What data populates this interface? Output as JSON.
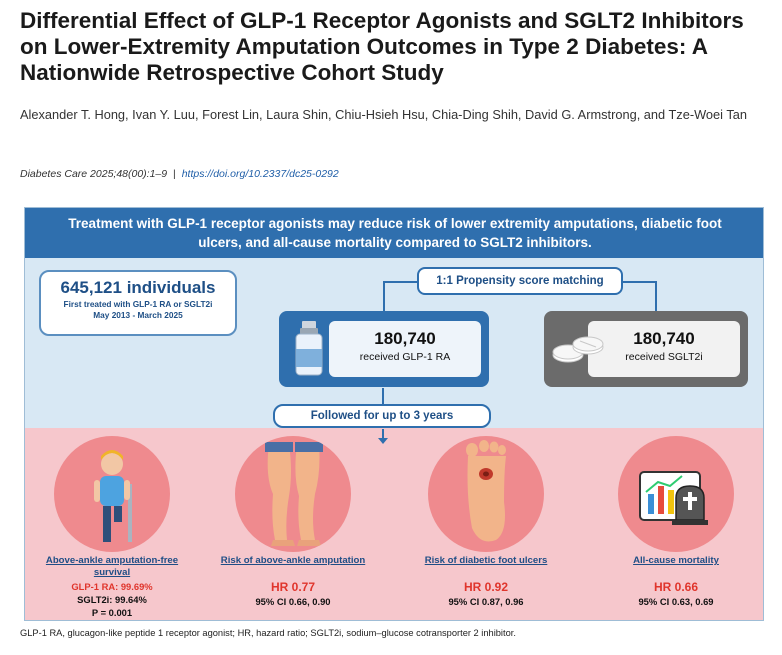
{
  "paper": {
    "title": "Differential Effect of GLP-1 Receptor Agonists and SGLT2 Inhibitors on Lower-Extremity Amputation Outcomes in Type 2 Diabetes: A Nationwide Retrospective Cohort Study",
    "authors": "Alexander T. Hong, Ivan Y. Luu, Forest Lin, Laura Shin, Chiu-Hsieh Hsu, Chia-Ding Shih, David G. Armstrong, and Tze-Woei Tan",
    "citation": {
      "journal": "Diabetes Care",
      "volume_pages": "2025;48(00):1–9",
      "separator": "|",
      "doi": "https://doi.org/10.2337/dc25-0292"
    }
  },
  "abstract": {
    "banner": "Treatment with GLP-1 receptor agonists may reduce risk of lower extremity amputations, diabetic foot ulcers, and all-cause mortality compared to SGLT2 inhibitors.",
    "population": {
      "count": "645,121 individuals",
      "line1": "First treated with GLP-1 RA or SGLT2i",
      "line2": "May 2013 - March 2025"
    },
    "matching": "1:1 Propensity score matching",
    "glp_arm": {
      "count": "180,740",
      "label": "received GLP-1 RA"
    },
    "sglt_arm": {
      "count": "180,740",
      "label": "received SGLT2i"
    },
    "follow_up": "Followed for up to 3 years",
    "outcomes": [
      {
        "label": "Above-ankle amputation-free survival",
        "glp": "GLP-1 RA: 99.69%",
        "sglt": "SGLT2i: 99.64%",
        "p": "P = 0.001",
        "icon": "person-with-crutch-icon"
      },
      {
        "label": "Risk of above-ankle amputation",
        "hr": "HR 0.77",
        "ci": "95% CI 0.66, 0.90",
        "icon": "legs-icon"
      },
      {
        "label": "Risk of diabetic foot ulcers",
        "hr": "HR 0.92",
        "ci": "95% CI 0.87, 0.96",
        "icon": "foot-ulcer-icon"
      },
      {
        "label": "All-cause mortality",
        "hr": "HR 0.66",
        "ci": "95% CI 0.63, 0.69",
        "icon": "mortality-chart-gravestone-icon"
      }
    ],
    "colors": {
      "banner": "#2f6fae",
      "blue_zone": "#d8e8f4",
      "pink_zone": "#f6c7cc",
      "hr_red": "#e0352c",
      "label_blue": "#1f4e86"
    }
  },
  "footnote": "GLP-1 RA, glucagon-like peptide 1 receptor agonist; HR, hazard ratio; SGLT2i, sodium–glucose cotransporter 2 inhibitor."
}
